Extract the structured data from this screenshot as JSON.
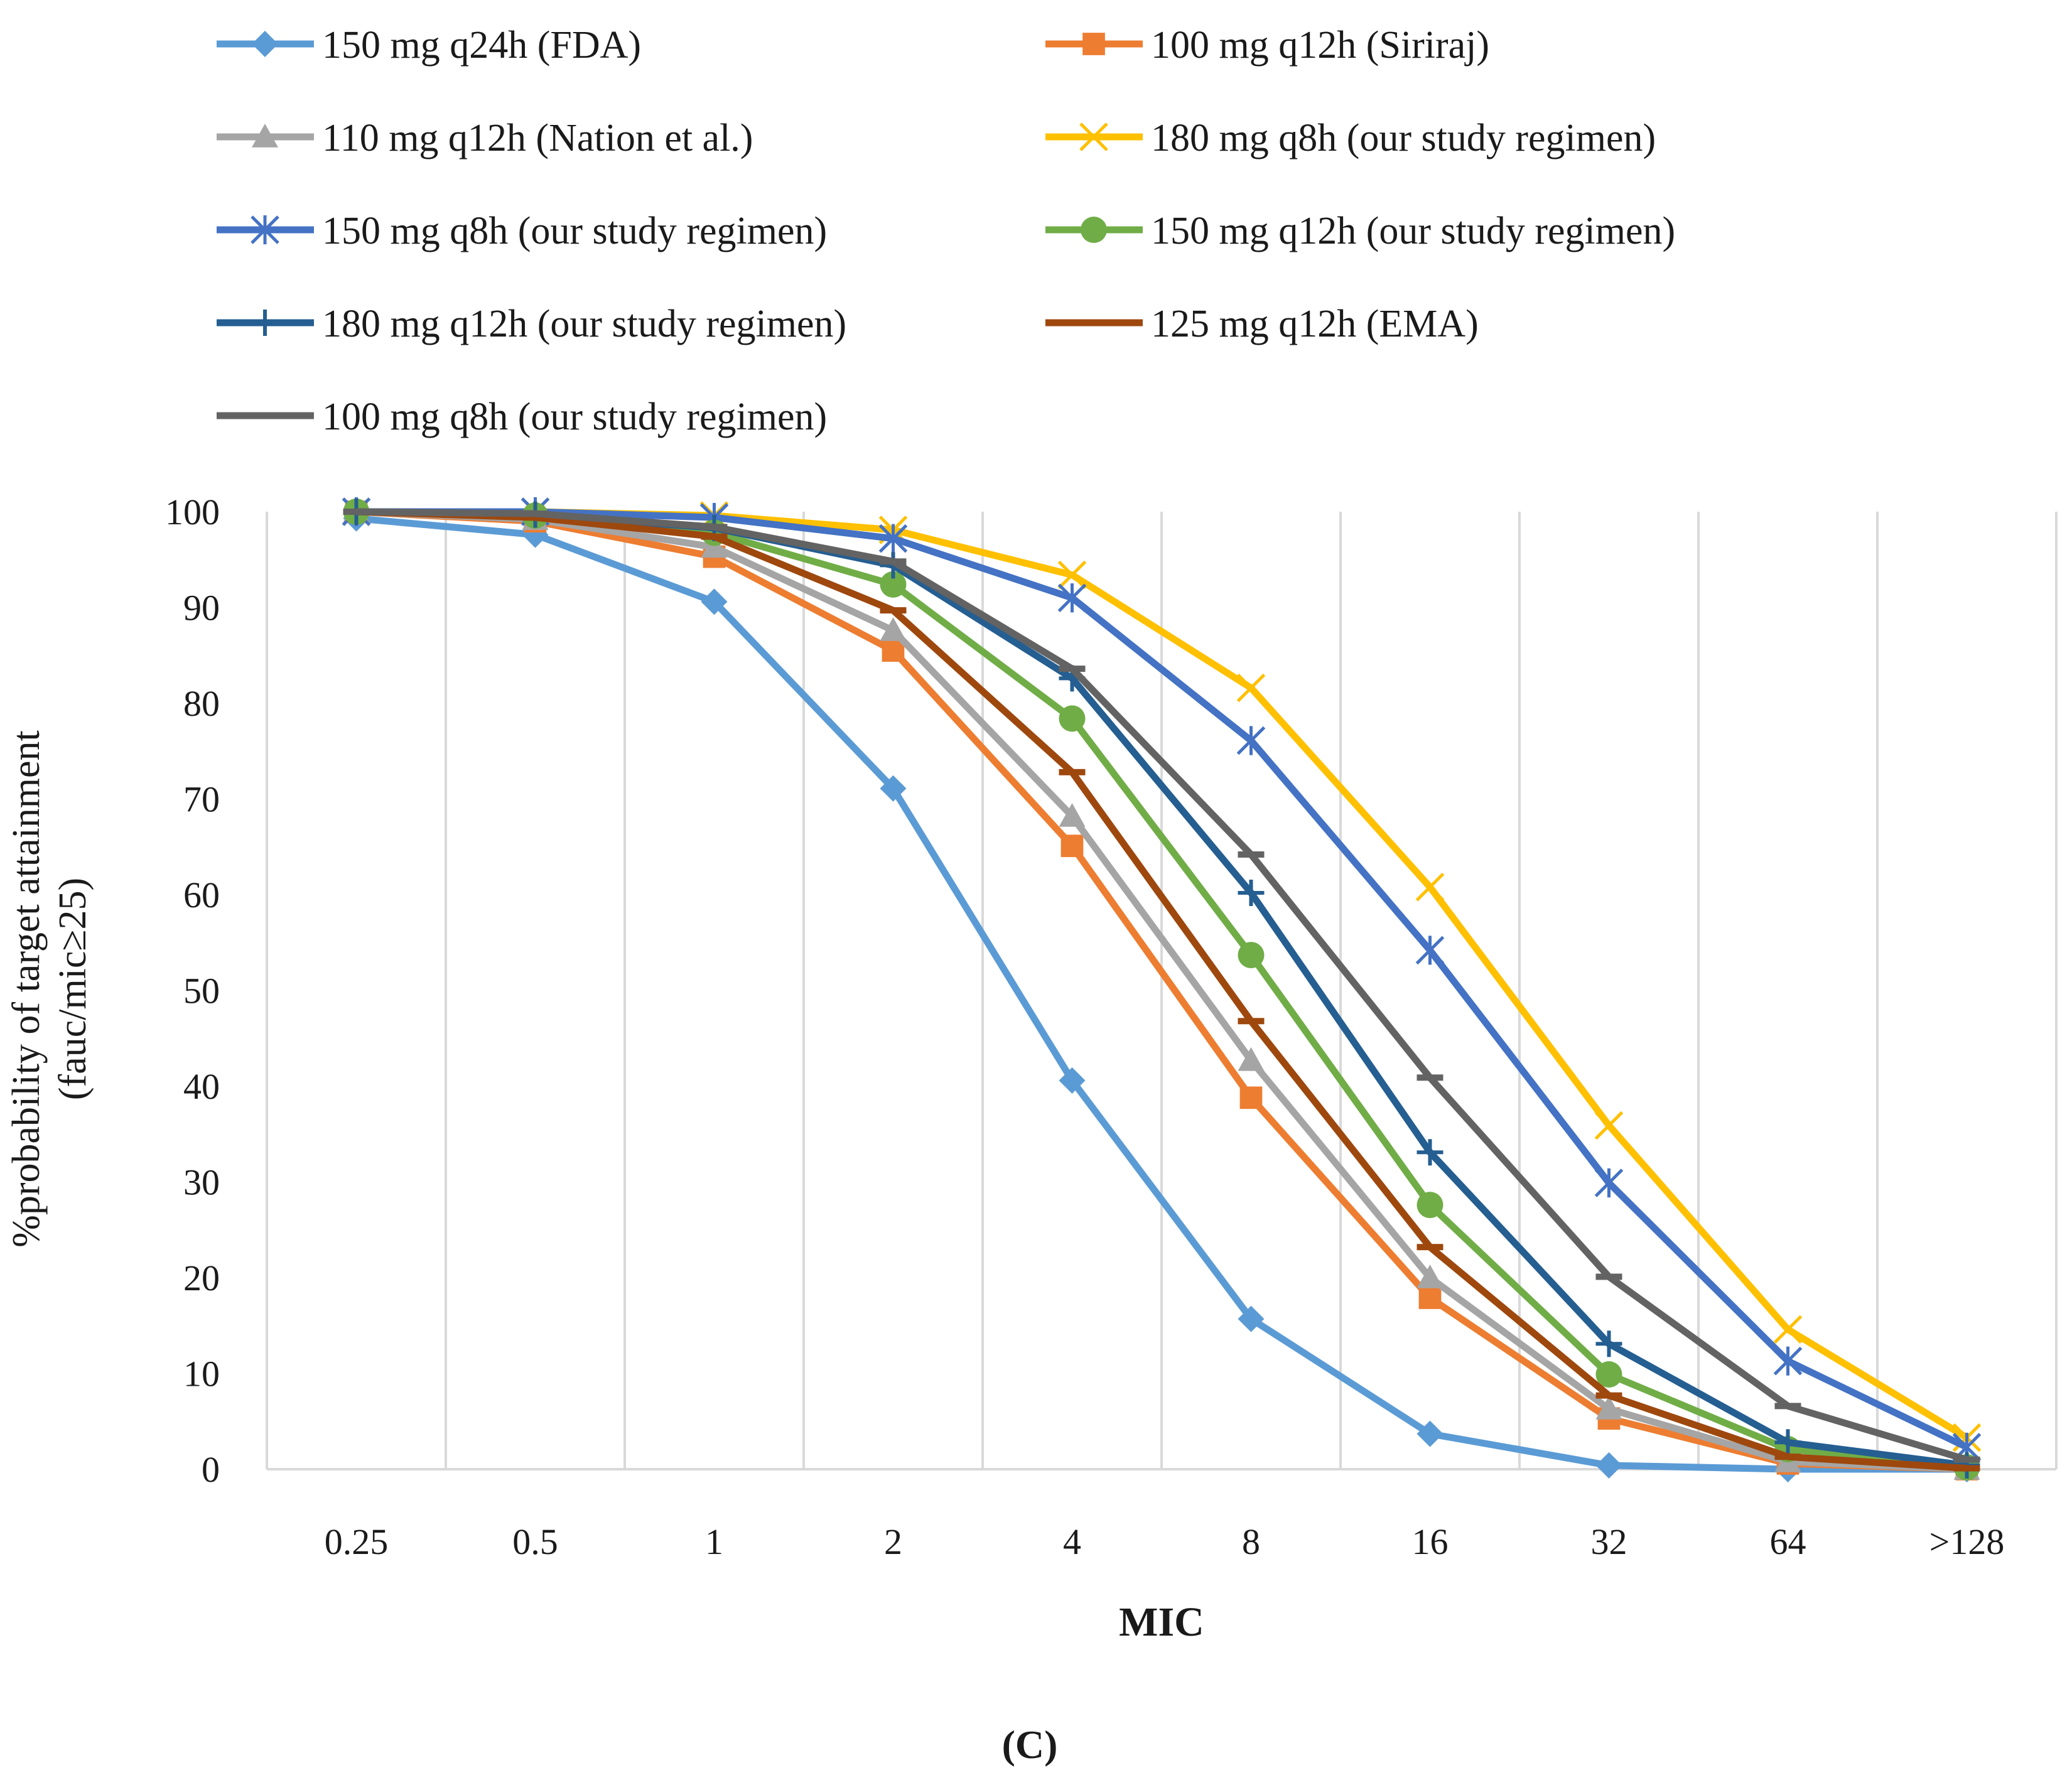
{
  "caption": "(C)",
  "chart_data": {
    "type": "line",
    "title": "",
    "xlabel": "MIC",
    "ylabel_line1": "%probability of target attainment",
    "ylabel_line2": "(fauc/mic≥25)",
    "categories": [
      "0.25",
      "0.5",
      "1",
      "2",
      "4",
      "8",
      "16",
      "32",
      "64",
      ">128"
    ],
    "yticks": [
      "0",
      "10",
      "20",
      "30",
      "40",
      "50",
      "60",
      "70",
      "80",
      "90",
      "100"
    ],
    "ylim": [
      0,
      100
    ],
    "grid": "vertical",
    "legend_position": "top",
    "series": [
      {
        "name": "150 mg q24h (FDA)",
        "color": "#5B9BD5",
        "marker": "diamond",
        "values": [
          99.3,
          97.6,
          90.6,
          71.1,
          40.6,
          15.7,
          3.7,
          0.4,
          0.0,
          0.0
        ]
      },
      {
        "name": "100 mg q12h (Siriraj)",
        "color": "#ED7D31",
        "marker": "square",
        "values": [
          100,
          99.0,
          95.3,
          85.5,
          65.1,
          38.8,
          17.9,
          5.3,
          0.6,
          0.0
        ]
      },
      {
        "name": "110 mg q12h (Nation et al.)",
        "color": "#A5A5A5",
        "marker": "triangle",
        "values": [
          100,
          99.2,
          96.3,
          87.6,
          68.2,
          42.7,
          20.0,
          6.3,
          0.8,
          0.0
        ]
      },
      {
        "name": "180 mg q8h (our study regimen)",
        "color": "#FFC000",
        "marker": "x",
        "values": [
          100,
          100,
          99.6,
          98.1,
          93.4,
          81.6,
          60.8,
          35.9,
          14.6,
          3.3
        ]
      },
      {
        "name": "150 mg q8h (our study regimen)",
        "color": "#4472C4",
        "marker": "star",
        "values": [
          100,
          100,
          99.4,
          97.2,
          91.0,
          76.1,
          54.2,
          29.9,
          11.3,
          2.3
        ]
      },
      {
        "name": "150 mg q12h (our study regimen)",
        "color": "#70AD47",
        "marker": "circle",
        "values": [
          100,
          99.6,
          97.8,
          92.4,
          78.4,
          53.7,
          27.6,
          9.9,
          2.1,
          0.2
        ]
      },
      {
        "name": "180 mg q12h (our study regimen)",
        "color": "#255E91",
        "marker": "plus",
        "values": [
          100,
          99.7,
          98.3,
          94.4,
          82.6,
          60.2,
          33.1,
          13.1,
          2.8,
          0.4
        ]
      },
      {
        "name": "125 mg q12h (EMA)",
        "color": "#9E480E",
        "marker": "dash",
        "values": [
          100,
          99.4,
          97.4,
          89.7,
          72.8,
          46.8,
          23.2,
          7.7,
          1.3,
          0.1
        ]
      },
      {
        "name": "100 mg q8h (our study regimen)",
        "color": "#636363",
        "marker": "dash",
        "values": [
          100,
          99.8,
          98.4,
          94.8,
          83.6,
          64.2,
          40.9,
          20.1,
          6.6,
          1.0
        ]
      }
    ]
  }
}
